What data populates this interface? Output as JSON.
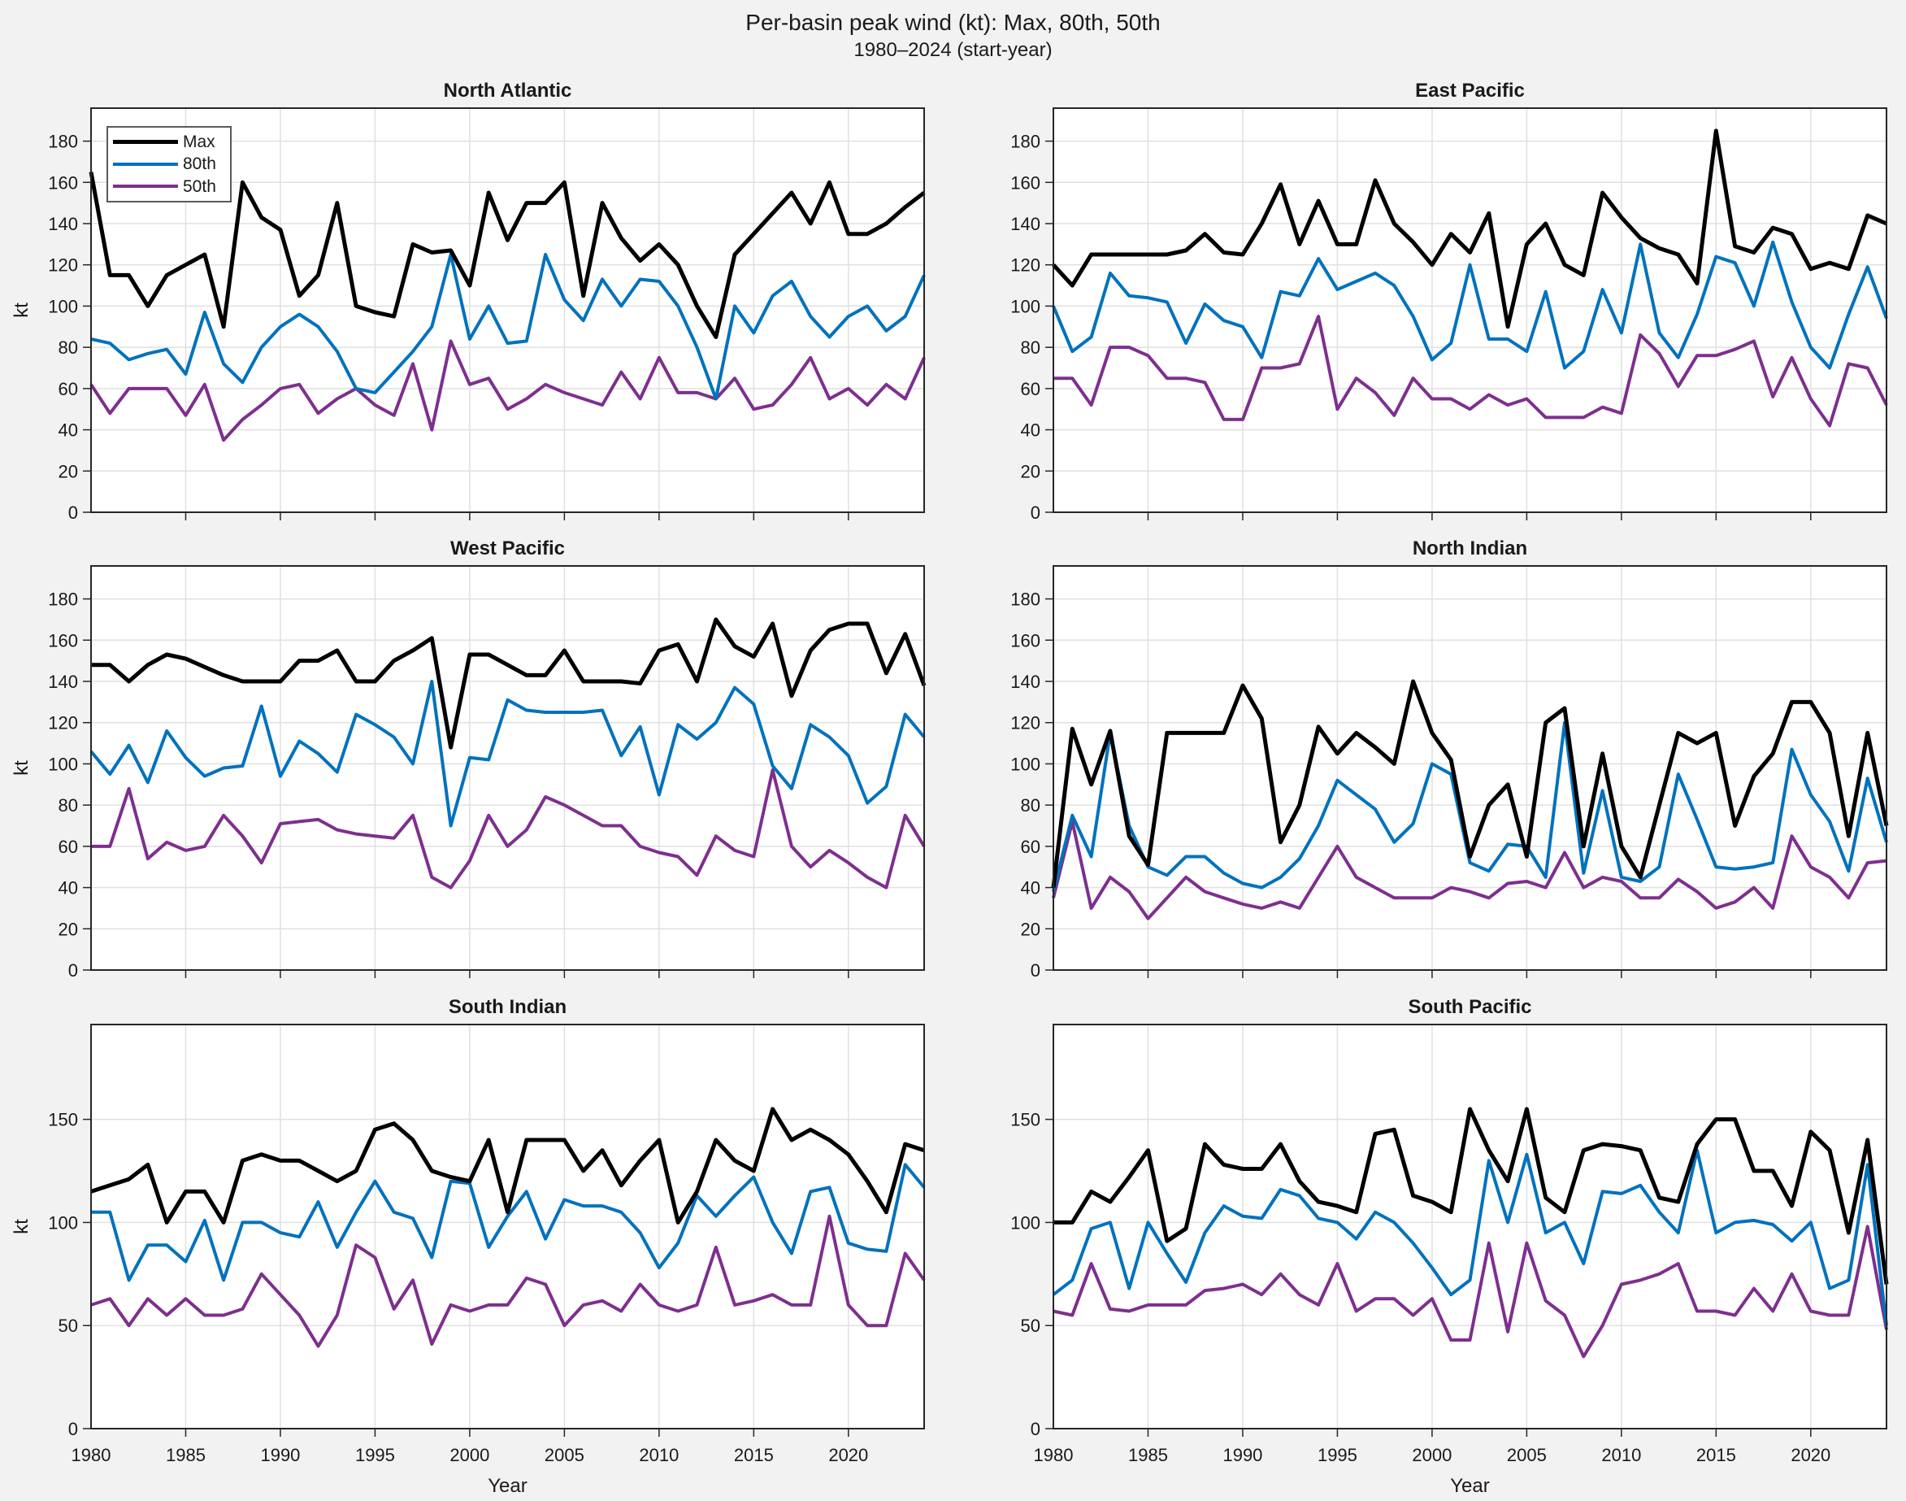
{
  "figure": {
    "title": "Per-basin peak wind (kt): Max, 80th, 50th",
    "subtitle": "1980–2024 (start-year)"
  },
  "legend": {
    "entries": [
      {
        "label": "Max",
        "color": "#000000",
        "thickness": 5
      },
      {
        "label": "80th",
        "color": "#0072BD",
        "thickness": 4
      },
      {
        "label": "50th",
        "color": "#7E2F8E",
        "thickness": 4
      }
    ]
  },
  "axes": {
    "x_label": "Year",
    "y_label": "kt",
    "x_tick_labels": [
      "1980",
      "1985",
      "1990",
      "1995",
      "2000",
      "2005",
      "2010",
      "2015",
      "2020"
    ],
    "y_tick_labels_rows_1_2": [
      "0",
      "20",
      "40",
      "60",
      "80",
      "100",
      "120",
      "140",
      "160",
      "180"
    ],
    "y_tick_labels_row_3": [
      "0",
      "50",
      "100",
      "150"
    ]
  },
  "chart_data": {
    "type": "line",
    "x": {
      "start_year": 1980,
      "end_year": 2024,
      "step": 1
    },
    "xlim": [
      1980,
      2024
    ],
    "ylim": [
      0,
      196
    ],
    "grid": true,
    "legend_position": "top-left of first panel only",
    "series_names": [
      "Max",
      "80th",
      "50th"
    ],
    "series_colors": {
      "Max": "#000000",
      "80th": "#0072BD",
      "50th": "#7E2F8E"
    },
    "panels": [
      {
        "title": "North Atlantic",
        "y_ticks": [
          0,
          20,
          40,
          60,
          80,
          100,
          120,
          140,
          160,
          180
        ],
        "series": [
          {
            "name": "Max",
            "values": [
              165,
              115,
              115,
              100,
              115,
              120,
              125,
              90,
              160,
              143,
              137,
              105,
              115,
              150,
              100,
              97,
              95,
              130,
              126,
              127,
              110,
              155,
              132,
              150,
              150,
              160,
              105,
              150,
              133,
              122,
              130,
              120,
              100,
              85,
              125,
              135,
              145,
              155,
              140,
              160,
              135,
              135,
              140,
              148,
              155
            ]
          },
          {
            "name": "80th",
            "values": [
              84,
              82,
              74,
              77,
              79,
              67,
              97,
              72,
              63,
              80,
              90,
              96,
              90,
              78,
              60,
              58,
              68,
              78,
              90,
              125,
              84,
              100,
              82,
              83,
              125,
              103,
              93,
              113,
              100,
              113,
              112,
              100,
              80,
              55,
              100,
              87,
              105,
              112,
              95,
              85,
              95,
              100,
              88,
              95,
              115
            ]
          },
          {
            "name": "50th",
            "values": [
              62,
              48,
              60,
              60,
              60,
              47,
              62,
              35,
              45,
              52,
              60,
              62,
              48,
              55,
              60,
              52,
              47,
              72,
              40,
              83,
              62,
              65,
              50,
              55,
              62,
              58,
              55,
              52,
              68,
              55,
              75,
              58,
              58,
              55,
              65,
              50,
              52,
              62,
              75,
              55,
              60,
              52,
              62,
              55,
              75
            ]
          }
        ]
      },
      {
        "title": "East Pacific",
        "y_ticks": [
          0,
          20,
          40,
          60,
          80,
          100,
          120,
          140,
          160,
          180
        ],
        "series": [
          {
            "name": "Max",
            "values": [
              120,
              110,
              125,
              125,
              125,
              125,
              125,
              127,
              135,
              126,
              125,
              140,
              159,
              130,
              151,
              130,
              130,
              161,
              140,
              131,
              120,
              135,
              126,
              145,
              90,
              130,
              140,
              120,
              115,
              155,
              143,
              133,
              128,
              125,
              111,
              185,
              129,
              126,
              138,
              135,
              118,
              121,
              118,
              144,
              140
            ]
          },
          {
            "name": "80th",
            "values": [
              100,
              78,
              85,
              116,
              105,
              104,
              102,
              82,
              101,
              93,
              90,
              75,
              107,
              105,
              123,
              108,
              112,
              116,
              110,
              95,
              74,
              82,
              120,
              84,
              84,
              78,
              107,
              70,
              78,
              108,
              87,
              130,
              87,
              75,
              96,
              124,
              121,
              100,
              131,
              102,
              80,
              70,
              96,
              119,
              94
            ]
          },
          {
            "name": "50th",
            "values": [
              65,
              65,
              52,
              80,
              80,
              76,
              65,
              65,
              63,
              45,
              45,
              70,
              70,
              72,
              95,
              50,
              65,
              58,
              47,
              65,
              55,
              55,
              50,
              57,
              52,
              55,
              46,
              46,
              46,
              51,
              48,
              86,
              77,
              61,
              76,
              76,
              79,
              83,
              56,
              75,
              55,
              42,
              72,
              70,
              52
            ]
          }
        ]
      },
      {
        "title": "West Pacific",
        "y_ticks": [
          0,
          20,
          40,
          60,
          80,
          100,
          120,
          140,
          160,
          180
        ],
        "series": [
          {
            "name": "Max",
            "values": [
              148,
              148,
              140,
              148,
              153,
              151,
              147,
              143,
              140,
              140,
              140,
              150,
              150,
              155,
              140,
              140,
              150,
              155,
              161,
              108,
              153,
              153,
              148,
              143,
              143,
              155,
              140,
              140,
              140,
              139,
              155,
              158,
              140,
              170,
              157,
              152,
              168,
              133,
              155,
              165,
              168,
              168,
              144,
              163,
              138
            ]
          },
          {
            "name": "80th",
            "values": [
              106,
              95,
              109,
              91,
              116,
              103,
              94,
              98,
              99,
              128,
              94,
              111,
              105,
              96,
              124,
              119,
              113,
              100,
              140,
              70,
              103,
              102,
              131,
              126,
              125,
              125,
              125,
              126,
              104,
              118,
              85,
              119,
              112,
              120,
              137,
              129,
              99,
              88,
              119,
              113,
              104,
              81,
              89,
              124,
              113
            ]
          },
          {
            "name": "50th",
            "values": [
              60,
              60,
              88,
              54,
              62,
              58,
              60,
              75,
              65,
              52,
              71,
              72,
              73,
              68,
              66,
              65,
              64,
              75,
              45,
              40,
              53,
              75,
              60,
              68,
              84,
              80,
              75,
              70,
              70,
              60,
              57,
              55,
              46,
              65,
              58,
              55,
              97,
              60,
              50,
              58,
              52,
              45,
              40,
              75,
              60
            ]
          }
        ]
      },
      {
        "title": "North Indian",
        "y_ticks": [
          0,
          20,
          40,
          60,
          80,
          100,
          120,
          140,
          160,
          180
        ],
        "series": [
          {
            "name": "Max",
            "values": [
              40,
              117,
              90,
              116,
              65,
              51,
              115,
              115,
              115,
              115,
              138,
              122,
              62,
              80,
              118,
              105,
              115,
              108,
              100,
              140,
              115,
              102,
              55,
              80,
              90,
              55,
              120,
              127,
              60,
              105,
              60,
              45,
              80,
              115,
              110,
              115,
              70,
              94,
              105,
              130,
              130,
              115,
              65,
              115,
              70
            ]
          },
          {
            "name": "80th",
            "values": [
              38,
              75,
              55,
              115,
              70,
              50,
              46,
              55,
              55,
              47,
              42,
              40,
              45,
              54,
              70,
              92,
              85,
              78,
              62,
              71,
              100,
              95,
              52,
              48,
              61,
              60,
              45,
              120,
              47,
              87,
              45,
              43,
              50,
              95,
              73,
              50,
              49,
              50,
              52,
              107,
              85,
              72,
              48,
              93,
              62
            ]
          },
          {
            "name": "50th",
            "values": [
              35,
              72,
              30,
              45,
              38,
              25,
              35,
              45,
              38,
              35,
              32,
              30,
              33,
              30,
              45,
              60,
              45,
              40,
              35,
              35,
              35,
              40,
              38,
              35,
              42,
              43,
              40,
              57,
              40,
              45,
              43,
              35,
              35,
              44,
              38,
              30,
              33,
              40,
              30,
              65,
              50,
              45,
              35,
              52,
              53
            ]
          }
        ]
      },
      {
        "title": "South Indian",
        "y_ticks": [
          0,
          50,
          100,
          150
        ],
        "series": [
          {
            "name": "Max",
            "values": [
              115,
              118,
              121,
              128,
              100,
              115,
              115,
              100,
              130,
              133,
              130,
              130,
              125,
              120,
              125,
              145,
              148,
              140,
              125,
              122,
              120,
              140,
              105,
              140,
              140,
              140,
              125,
              135,
              118,
              130,
              140,
              100,
              115,
              140,
              130,
              125,
              155,
              140,
              145,
              140,
              133,
              120,
              105,
              138,
              135
            ]
          },
          {
            "name": "80th",
            "values": [
              105,
              105,
              72,
              89,
              89,
              81,
              101,
              72,
              100,
              100,
              95,
              93,
              110,
              88,
              105,
              120,
              105,
              102,
              83,
              120,
              119,
              88,
              103,
              115,
              92,
              111,
              108,
              108,
              105,
              95,
              78,
              90,
              113,
              103,
              113,
              122,
              100,
              85,
              115,
              117,
              90,
              87,
              86,
              128,
              117
            ]
          },
          {
            "name": "50th",
            "values": [
              60,
              63,
              50,
              63,
              55,
              63,
              55,
              55,
              58,
              75,
              65,
              55,
              40,
              55,
              89,
              83,
              58,
              72,
              41,
              60,
              57,
              60,
              60,
              73,
              70,
              50,
              60,
              62,
              57,
              70,
              60,
              57,
              60,
              88,
              60,
              62,
              65,
              60,
              60,
              103,
              60,
              50,
              50,
              85,
              72
            ]
          }
        ]
      },
      {
        "title": "South Pacific",
        "y_ticks": [
          0,
          50,
          100,
          150
        ],
        "series": [
          {
            "name": "Max",
            "values": [
              100,
              100,
              115,
              110,
              122,
              135,
              91,
              97,
              138,
              128,
              126,
              126,
              138,
              120,
              110,
              108,
              105,
              143,
              145,
              113,
              110,
              105,
              155,
              135,
              120,
              155,
              112,
              105,
              135,
              138,
              137,
              135,
              112,
              110,
              138,
              150,
              150,
              125,
              125,
              108,
              144,
              135,
              95,
              140,
              70
            ]
          },
          {
            "name": "80th",
            "values": [
              65,
              72,
              97,
              100,
              68,
              100,
              85,
              71,
              95,
              108,
              103,
              102,
              116,
              113,
              102,
              100,
              92,
              105,
              100,
              90,
              78,
              65,
              72,
              130,
              100,
              133,
              95,
              100,
              80,
              115,
              114,
              118,
              105,
              95,
              135,
              95,
              100,
              101,
              99,
              91,
              100,
              68,
              72,
              128,
              50
            ]
          },
          {
            "name": "50th",
            "values": [
              57,
              55,
              80,
              58,
              57,
              60,
              60,
              60,
              67,
              68,
              70,
              65,
              75,
              65,
              60,
              80,
              57,
              63,
              63,
              55,
              63,
              43,
              43,
              90,
              47,
              90,
              62,
              55,
              35,
              50,
              70,
              72,
              75,
              80,
              57,
              57,
              55,
              68,
              57,
              75,
              57,
              55,
              55,
              98,
              48
            ]
          }
        ]
      }
    ]
  }
}
